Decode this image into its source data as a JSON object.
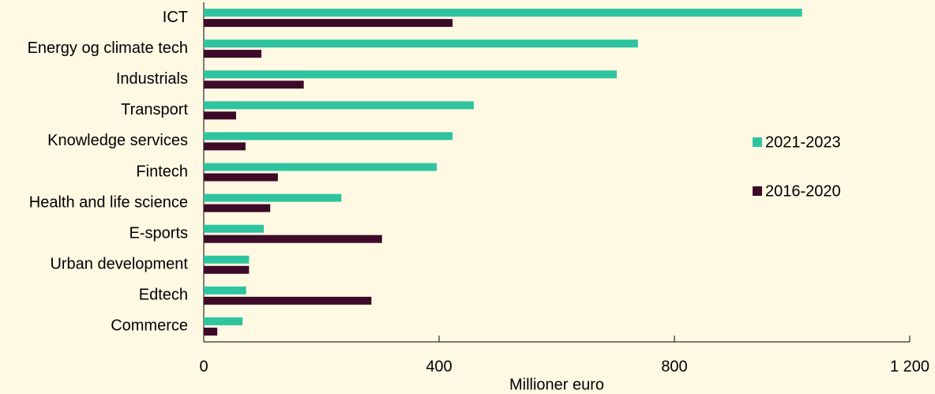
{
  "chart_data": {
    "type": "hbar",
    "categories": [
      "ICT",
      "Energy og climate tech",
      "Industrials",
      "Transport",
      "Knowledge services",
      "Fintech",
      "Health and life science",
      "E-sports",
      "Urban development",
      "Edtech",
      "Commerce"
    ],
    "series": [
      {
        "name": "2021-2023",
        "color": "#2ec4a0",
        "values": [
          1017,
          738,
          702,
          459,
          423,
          396,
          234,
          102,
          77,
          72,
          66
        ]
      },
      {
        "name": "2016-2020",
        "color": "#3d0a2a",
        "values": [
          423,
          98,
          170,
          55,
          71,
          126,
          113,
          303,
          77,
          285,
          23
        ]
      }
    ],
    "xlim": [
      0,
      1200
    ],
    "xticks": [
      0,
      400,
      800,
      {
        "value": 1200,
        "label": "1 200"
      }
    ],
    "xlabel": "Millioner euro",
    "legend": "right"
  }
}
